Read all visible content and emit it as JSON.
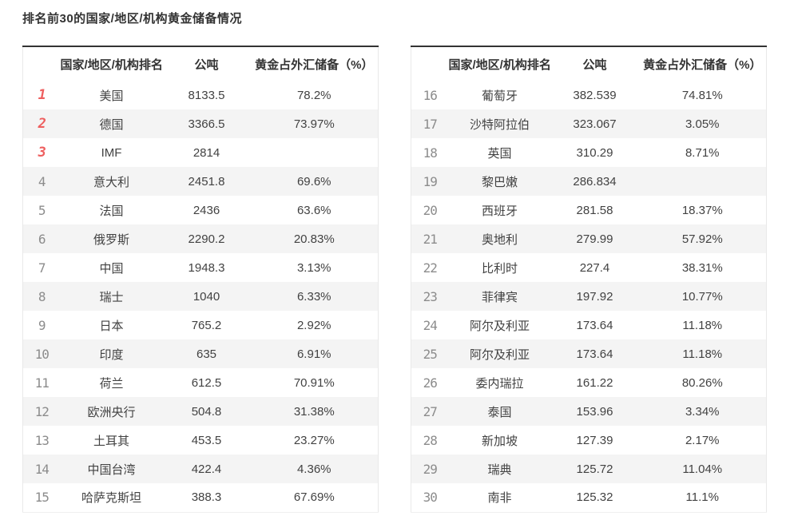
{
  "page": {
    "title": "排名前30的国家/地区/机构黄金储备情况"
  },
  "columns": {
    "rank": "",
    "name": "国家/地区/机构排名",
    "tonnes": "公吨",
    "pct": "黄金占外汇储备（%）"
  },
  "colors": {
    "accent_red": "#ee5f5f",
    "rank_gray": "#8c8c8c",
    "stripe": "#f4f4f4",
    "top_border": "#333333"
  },
  "tables": [
    {
      "rows": [
        {
          "rank": "1",
          "name": "美国",
          "tonnes": "8133.5",
          "pct": "78.2%"
        },
        {
          "rank": "2",
          "name": "德国",
          "tonnes": "3366.5",
          "pct": "73.97%"
        },
        {
          "rank": "3",
          "name": "IMF",
          "tonnes": "2814",
          "pct": ""
        },
        {
          "rank": "4",
          "name": "意大利",
          "tonnes": "2451.8",
          "pct": "69.6%"
        },
        {
          "rank": "5",
          "name": "法国",
          "tonnes": "2436",
          "pct": "63.6%"
        },
        {
          "rank": "6",
          "name": "俄罗斯",
          "tonnes": "2290.2",
          "pct": "20.83%"
        },
        {
          "rank": "7",
          "name": "中国",
          "tonnes": "1948.3",
          "pct": "3.13%"
        },
        {
          "rank": "8",
          "name": "瑞士",
          "tonnes": "1040",
          "pct": "6.33%"
        },
        {
          "rank": "9",
          "name": "日本",
          "tonnes": "765.2",
          "pct": "2.92%"
        },
        {
          "rank": "10",
          "name": "印度",
          "tonnes": "635",
          "pct": "6.91%"
        },
        {
          "rank": "11",
          "name": "荷兰",
          "tonnes": "612.5",
          "pct": "70.91%"
        },
        {
          "rank": "12",
          "name": "欧洲央行",
          "tonnes": "504.8",
          "pct": "31.38%"
        },
        {
          "rank": "13",
          "name": "土耳其",
          "tonnes": "453.5",
          "pct": "23.27%"
        },
        {
          "rank": "14",
          "name": "中国台湾",
          "tonnes": "422.4",
          "pct": "4.36%"
        },
        {
          "rank": "15",
          "name": "哈萨克斯坦",
          "tonnes": "388.3",
          "pct": "67.69%"
        }
      ]
    },
    {
      "rows": [
        {
          "rank": "16",
          "name": "葡萄牙",
          "tonnes": "382.539",
          "pct": "74.81%"
        },
        {
          "rank": "17",
          "name": "沙特阿拉伯",
          "tonnes": "323.067",
          "pct": "3.05%"
        },
        {
          "rank": "18",
          "name": "英国",
          "tonnes": "310.29",
          "pct": "8.71%"
        },
        {
          "rank": "19",
          "name": "黎巴嫩",
          "tonnes": "286.834",
          "pct": ""
        },
        {
          "rank": "20",
          "name": "西班牙",
          "tonnes": "281.58",
          "pct": "18.37%"
        },
        {
          "rank": "21",
          "name": "奥地利",
          "tonnes": "279.99",
          "pct": "57.92%"
        },
        {
          "rank": "22",
          "name": "比利时",
          "tonnes": "227.4",
          "pct": "38.31%"
        },
        {
          "rank": "23",
          "name": "菲律宾",
          "tonnes": "197.92",
          "pct": "10.77%"
        },
        {
          "rank": "24",
          "name": "阿尔及利亚",
          "tonnes": "173.64",
          "pct": "11.18%"
        },
        {
          "rank": "25",
          "name": "阿尔及利亚",
          "tonnes": "173.64",
          "pct": "11.18%"
        },
        {
          "rank": "26",
          "name": "委内瑞拉",
          "tonnes": "161.22",
          "pct": "80.26%"
        },
        {
          "rank": "27",
          "name": "泰国",
          "tonnes": "153.96",
          "pct": "3.34%"
        },
        {
          "rank": "28",
          "name": "新加坡",
          "tonnes": "127.39",
          "pct": "2.17%"
        },
        {
          "rank": "29",
          "name": "瑞典",
          "tonnes": "125.72",
          "pct": "11.04%"
        },
        {
          "rank": "30",
          "name": "南非",
          "tonnes": "125.32",
          "pct": "11.1%"
        }
      ]
    }
  ]
}
